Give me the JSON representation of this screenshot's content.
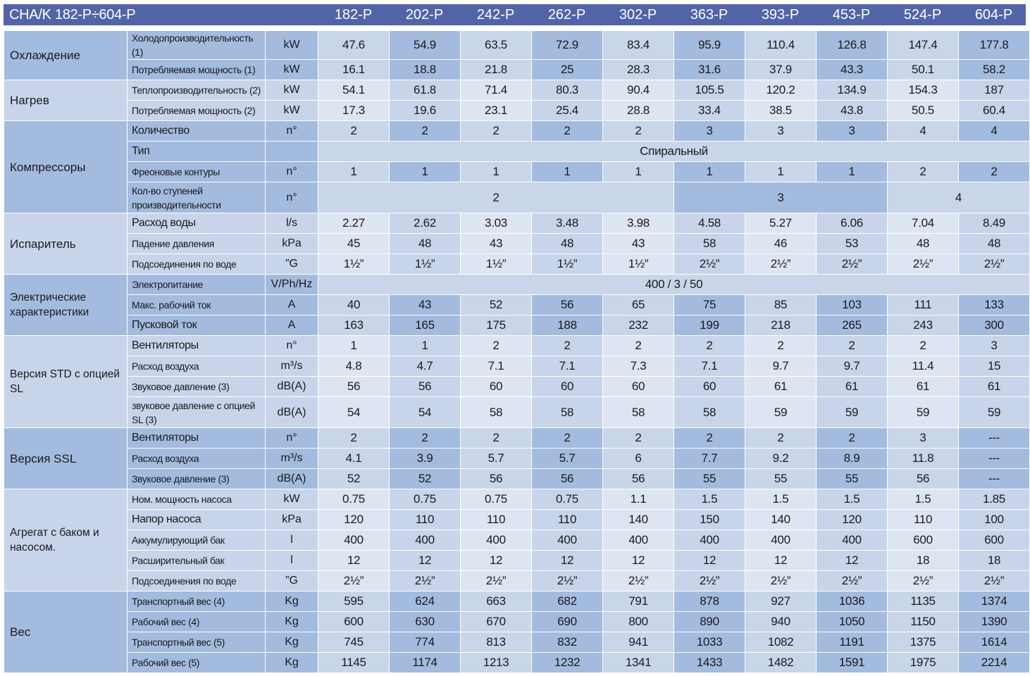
{
  "header": {
    "title": "CHA/K 182-P÷604-P",
    "models": [
      "182-P",
      "202-P",
      "242-P",
      "262-P",
      "302-P",
      "363-P",
      "393-P",
      "453-P",
      "524-P",
      "604-P"
    ]
  },
  "colors": {
    "header": "#5264a8",
    "band_dark": "#a3bbde",
    "band_light": "#c8d4ea"
  },
  "groups": [
    {
      "label": "Охлаждение",
      "band": 0,
      "rows": [
        {
          "param": "Холодопроизводительность (1)",
          "unit": "kW",
          "values": [
            "47.6",
            "54.9",
            "63.5",
            "72.9",
            "83.4",
            "95.9",
            "110.4",
            "126.8",
            "147.4",
            "177.8"
          ]
        },
        {
          "param": "Потребляемая мощность (1)",
          "unit": "kW",
          "values": [
            "16.1",
            "18.8",
            "21.8",
            "25",
            "28.3",
            "31.6",
            "37.9",
            "43.3",
            "50.1",
            "58.2"
          ]
        }
      ]
    },
    {
      "label": "Нагрев",
      "band": 1,
      "rows": [
        {
          "param": "Теплопроизводительность (2)",
          "unit": "kW",
          "values": [
            "54.1",
            "61.8",
            "71.4",
            "80.3",
            "90.4",
            "105.5",
            "120.2",
            "134.9",
            "154.3",
            "187"
          ]
        },
        {
          "param": "Потребляемая мощность (2)",
          "unit": "kW",
          "values": [
            "17.3",
            "19.6",
            "23.1",
            "25.4",
            "28.8",
            "33.4",
            "38.5",
            "43.8",
            "50.5",
            "60.4"
          ]
        }
      ]
    },
    {
      "label": "Компрессоры",
      "band": 0,
      "rows": [
        {
          "param": "Количество",
          "big": true,
          "unit": "n°",
          "values": [
            "2",
            "2",
            "2",
            "2",
            "2",
            "3",
            "3",
            "3",
            "4",
            "4"
          ]
        },
        {
          "param": "Тип",
          "big": true,
          "unit": "",
          "spans": [
            {
              "text": "Спиральный",
              "cols": 10
            }
          ]
        },
        {
          "param": "Фреоновые контуры",
          "unit": "n°",
          "values": [
            "1",
            "1",
            "1",
            "1",
            "1",
            "1",
            "1",
            "1",
            "2",
            "2"
          ]
        },
        {
          "param": "Кол-во ступеней производительности",
          "unit": "n°",
          "tall": true,
          "spans": [
            {
              "text": "2",
              "cols": 5
            },
            {
              "text": "3",
              "cols": 3
            },
            {
              "text": "4",
              "cols": 2
            }
          ]
        }
      ]
    },
    {
      "label": "Испаритель",
      "band": 1,
      "rows": [
        {
          "param": "Расход воды",
          "big": true,
          "unit": "l/s",
          "values": [
            "2.27",
            "2.62",
            "3.03",
            "3.48",
            "3.98",
            "4.58",
            "5.27",
            "6.06",
            "7.04",
            "8.49"
          ]
        },
        {
          "param": "Падение давления",
          "unit": "kPa",
          "values": [
            "45",
            "48",
            "43",
            "48",
            "43",
            "58",
            "46",
            "53",
            "48",
            "48"
          ]
        },
        {
          "param": "Подсоединения по воде",
          "unit": "”G",
          "values": [
            "1½”",
            "1½”",
            "1½”",
            "1½”",
            "1½”",
            "2½”",
            "2½”",
            "2½”",
            "2½”",
            "2½”"
          ]
        }
      ]
    },
    {
      "label": "Электрические характеристики",
      "band": 0,
      "small": true,
      "rows": [
        {
          "param": "Электропитание",
          "unit": "V/Ph/Hz",
          "spans": [
            {
              "text": "400 / 3 / 50",
              "cols": 10
            }
          ]
        },
        {
          "param": "Макс. рабочий ток",
          "unit": "A",
          "values": [
            "40",
            "43",
            "52",
            "56",
            "65",
            "75",
            "85",
            "103",
            "111",
            "133"
          ]
        },
        {
          "param": "Пусковой ток",
          "big": true,
          "unit": "A",
          "values": [
            "163",
            "165",
            "175",
            "188",
            "232",
            "199",
            "218",
            "265",
            "243",
            "300"
          ]
        }
      ]
    },
    {
      "label": "Версия STD с опцией SL",
      "band": 1,
      "small": true,
      "rows": [
        {
          "param": "Вентиляторы",
          "big": true,
          "unit": "n°",
          "values": [
            "1",
            "1",
            "2",
            "2",
            "2",
            "2",
            "2",
            "2",
            "2",
            "3"
          ]
        },
        {
          "param": "Расход воздуха",
          "unit": "m³/s",
          "values": [
            "4.8",
            "4.7",
            "7.1",
            "7.1",
            "7.3",
            "7.1",
            "9.7",
            "9.7",
            "11.4",
            "15"
          ]
        },
        {
          "param": "Звуковое давление (3)",
          "unit": "dB(A)",
          "values": [
            "56",
            "56",
            "60",
            "60",
            "60",
            "60",
            "61",
            "61",
            "61",
            "61"
          ]
        },
        {
          "param": "звуковое давление с опцией SL (3)",
          "unit": "dB(A)",
          "tall": true,
          "values": [
            "54",
            "54",
            "58",
            "58",
            "58",
            "58",
            "59",
            "59",
            "59",
            "59"
          ]
        }
      ]
    },
    {
      "label": "Версия SSL",
      "band": 0,
      "rows": [
        {
          "param": "Вентиляторы",
          "big": true,
          "unit": "n°",
          "values": [
            "2",
            "2",
            "2",
            "2",
            "2",
            "2",
            "2",
            "2",
            "3",
            "---"
          ]
        },
        {
          "param": "Расход воздуха",
          "unit": "m³/s",
          "values": [
            "4.1",
            "3.9",
            "5.7",
            "5.7",
            "6",
            "7.7",
            "9.2",
            "8.9",
            "11.8",
            "---"
          ]
        },
        {
          "param": "Звуковое давление (3)",
          "unit": "dB(A)",
          "values": [
            "52",
            "52",
            "56",
            "56",
            "56",
            "55",
            "55",
            "55",
            "56",
            "---"
          ]
        }
      ]
    },
    {
      "label": "Агрегат с баком и насосом.",
      "band": 1,
      "small": true,
      "rows": [
        {
          "param": "Ном. мощность насоса",
          "unit": "kW",
          "values": [
            "0.75",
            "0.75",
            "0.75",
            "0.75",
            "1.1",
            "1.5",
            "1.5",
            "1.5",
            "1.5",
            "1.85"
          ]
        },
        {
          "param": "Напор насоса",
          "big": true,
          "unit": "kPa",
          "values": [
            "120",
            "110",
            "110",
            "110",
            "140",
            "150",
            "140",
            "120",
            "110",
            "100"
          ]
        },
        {
          "param": "Аккумулирующий бак",
          "unit": "l",
          "values": [
            "400",
            "400",
            "400",
            "400",
            "400",
            "400",
            "400",
            "400",
            "600",
            "600"
          ]
        },
        {
          "param": "Расширительный бак",
          "unit": "l",
          "values": [
            "12",
            "12",
            "12",
            "12",
            "12",
            "12",
            "12",
            "12",
            "18",
            "18"
          ]
        },
        {
          "param": "Подсоединения по воде",
          "unit": "”G",
          "values": [
            "2½”",
            "2½”",
            "2½”",
            "2½”",
            "2½”",
            "2½”",
            "2½”",
            "2½”",
            "2½”",
            "2½”"
          ]
        }
      ]
    },
    {
      "label": "Вес",
      "band": 0,
      "rows": [
        {
          "param": "Транспортный вес (4)",
          "unit": "Kg",
          "values": [
            "595",
            "624",
            "663",
            "682",
            "791",
            "878",
            "927",
            "1036",
            "1135",
            "1374"
          ]
        },
        {
          "param": "Рабочий вес (4)",
          "unit": "Kg",
          "values": [
            "600",
            "630",
            "670",
            "690",
            "800",
            "890",
            "940",
            "1050",
            "1150",
            "1390"
          ]
        },
        {
          "param": "Транспортный вес (5)",
          "unit": "Kg",
          "values": [
            "745",
            "774",
            "813",
            "832",
            "941",
            "1033",
            "1082",
            "1191",
            "1375",
            "1614"
          ]
        },
        {
          "param": "Рабочий вес (5)",
          "unit": "Kg",
          "values": [
            "1145",
            "1174",
            "1213",
            "1232",
            "1341",
            "1433",
            "1482",
            "1591",
            "1975",
            "2214"
          ]
        }
      ]
    }
  ]
}
